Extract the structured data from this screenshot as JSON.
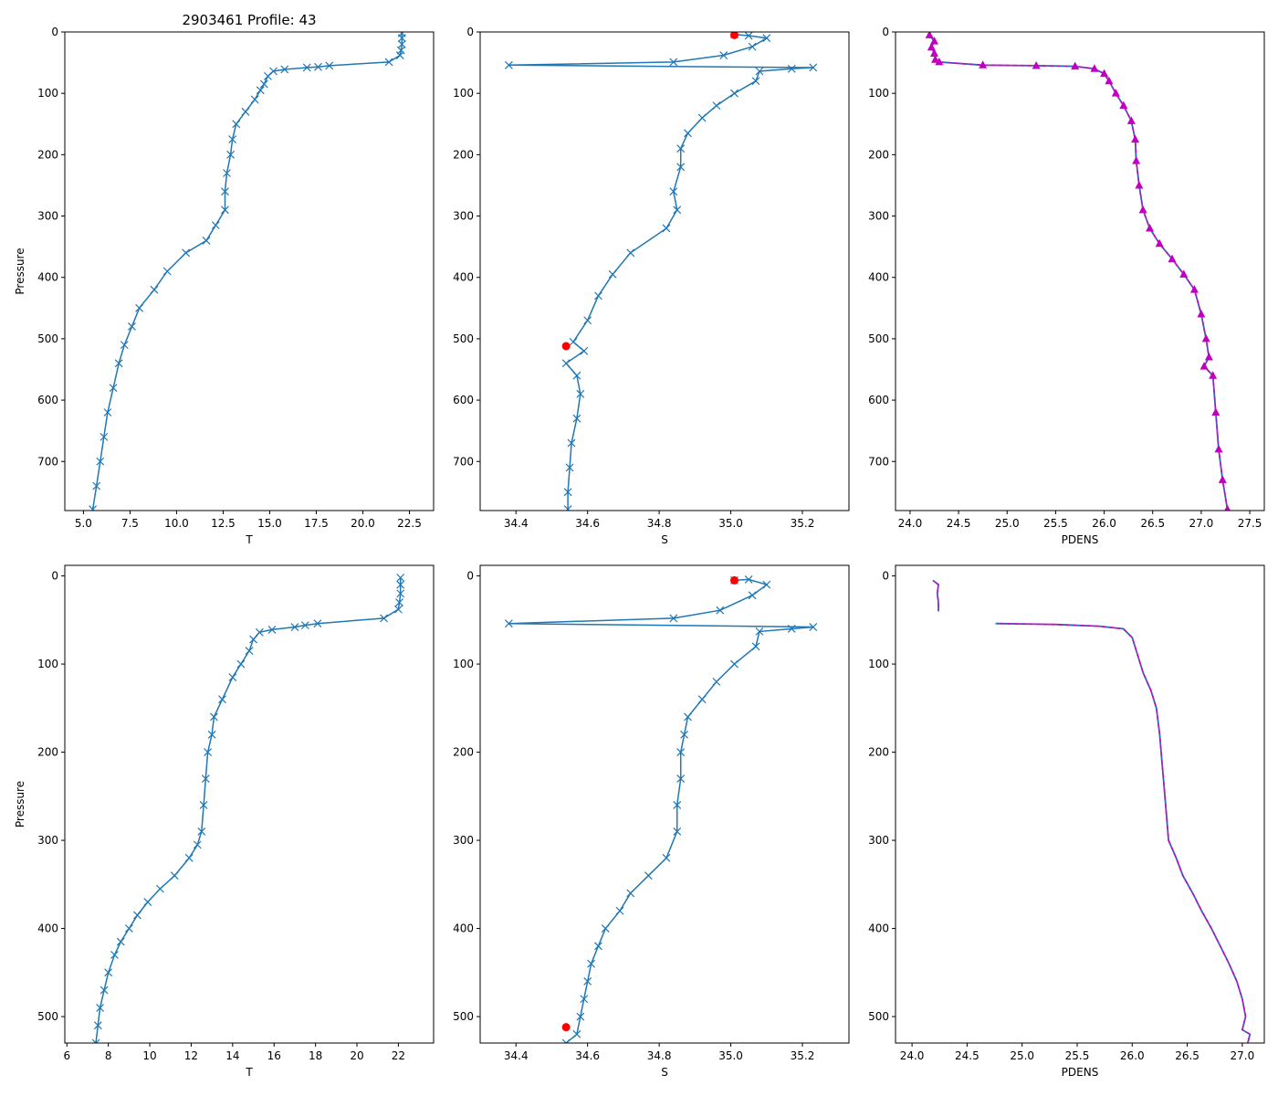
{
  "figure": {
    "title": "2903461 Profile: 43"
  },
  "chart_data": [
    {
      "type": "line",
      "row": 1,
      "col": 1,
      "xlabel": "T",
      "ylabel": "Pressure",
      "xlim": [
        4.0,
        23.8
      ],
      "ylim": [
        780,
        0
      ],
      "xticks": [
        "5.0",
        "7.5",
        "10.0",
        "12.5",
        "15.0",
        "17.5",
        "20.0",
        "22.5"
      ],
      "yticks": [
        "0",
        "100",
        "200",
        "300",
        "400",
        "500",
        "600",
        "700"
      ],
      "marker": "x",
      "series": [
        {
          "name": "T",
          "points": [
            [
              22.1,
              2
            ],
            [
              22.1,
              10
            ],
            [
              22.1,
              20
            ],
            [
              22.05,
              30
            ],
            [
              22.0,
              38
            ],
            [
              21.4,
              49
            ],
            [
              18.2,
              55
            ],
            [
              17.6,
              57
            ],
            [
              17.0,
              58
            ],
            [
              15.8,
              61
            ],
            [
              15.2,
              64
            ],
            [
              14.9,
              72
            ],
            [
              14.7,
              85
            ],
            [
              14.5,
              95
            ],
            [
              14.2,
              110
            ],
            [
              13.7,
              130
            ],
            [
              13.2,
              150
            ],
            [
              13.0,
              175
            ],
            [
              12.9,
              200
            ],
            [
              12.7,
              230
            ],
            [
              12.6,
              260
            ],
            [
              12.6,
              290
            ],
            [
              12.1,
              315
            ],
            [
              11.6,
              340
            ],
            [
              10.5,
              360
            ],
            [
              9.5,
              390
            ],
            [
              8.8,
              420
            ],
            [
              8.0,
              450
            ],
            [
              7.6,
              480
            ],
            [
              7.2,
              510
            ],
            [
              6.9,
              540
            ],
            [
              6.6,
              580
            ],
            [
              6.3,
              620
            ],
            [
              6.1,
              660
            ],
            [
              5.9,
              700
            ],
            [
              5.7,
              740
            ],
            [
              5.5,
              778
            ]
          ]
        }
      ]
    },
    {
      "type": "line",
      "row": 1,
      "col": 2,
      "xlabel": "S",
      "ylabel": "",
      "xlim": [
        34.3,
        35.33
      ],
      "ylim": [
        780,
        0
      ],
      "xticks": [
        "34.4",
        "34.6",
        "34.8",
        "35.0",
        "35.2"
      ],
      "yticks": [
        "0",
        "100",
        "200",
        "300",
        "400",
        "500",
        "600",
        "700"
      ],
      "marker": "x",
      "series": [
        {
          "name": "S",
          "points": [
            [
              35.01,
              4
            ],
            [
              35.05,
              6
            ],
            [
              35.1,
              10
            ],
            [
              35.06,
              24
            ],
            [
              34.98,
              38
            ],
            [
              34.84,
              49
            ],
            [
              34.38,
              54
            ],
            [
              35.23,
              58
            ],
            [
              35.17,
              60
            ],
            [
              35.08,
              64
            ],
            [
              35.07,
              80
            ],
            [
              35.01,
              100
            ],
            [
              34.96,
              120
            ],
            [
              34.92,
              140
            ],
            [
              34.88,
              165
            ],
            [
              34.86,
              190
            ],
            [
              34.86,
              220
            ],
            [
              34.84,
              260
            ],
            [
              34.85,
              290
            ],
            [
              34.82,
              320
            ],
            [
              34.72,
              360
            ],
            [
              34.67,
              395
            ],
            [
              34.63,
              430
            ],
            [
              34.6,
              470
            ],
            [
              34.56,
              505
            ],
            [
              34.59,
              520
            ],
            [
              34.54,
              540
            ],
            [
              34.57,
              560
            ],
            [
              34.58,
              590
            ],
            [
              34.57,
              630
            ],
            [
              34.555,
              670
            ],
            [
              34.55,
              710
            ],
            [
              34.545,
              750
            ],
            [
              34.545,
              778
            ]
          ]
        }
      ],
      "highlights": [
        [
          35.01,
          5
        ],
        [
          34.54,
          512
        ]
      ]
    },
    {
      "type": "line",
      "row": 1,
      "col": 3,
      "xlabel": "PDENS",
      "ylabel": "",
      "xlim": [
        23.85,
        27.65
      ],
      "ylim": [
        780,
        0
      ],
      "xticks": [
        "24.0",
        "24.5",
        "25.0",
        "25.5",
        "26.0",
        "26.5",
        "27.0",
        "27.5"
      ],
      "yticks": [
        "0",
        "100",
        "200",
        "300",
        "400",
        "500",
        "600",
        "700"
      ],
      "marker": "triangle",
      "series": [
        {
          "name": "PDENS",
          "points": [
            [
              24.2,
              5
            ],
            [
              24.25,
              15
            ],
            [
              24.22,
              25
            ],
            [
              24.25,
              35
            ],
            [
              24.26,
              45
            ],
            [
              24.3,
              49
            ],
            [
              24.75,
              54
            ],
            [
              25.3,
              55
            ],
            [
              25.7,
              56
            ],
            [
              25.9,
              60
            ],
            [
              26.0,
              68
            ],
            [
              26.05,
              80
            ],
            [
              26.12,
              100
            ],
            [
              26.2,
              120
            ],
            [
              26.28,
              145
            ],
            [
              26.32,
              175
            ],
            [
              26.33,
              210
            ],
            [
              26.36,
              250
            ],
            [
              26.4,
              290
            ],
            [
              26.47,
              320
            ],
            [
              26.57,
              345
            ],
            [
              26.7,
              370
            ],
            [
              26.82,
              395
            ],
            [
              26.93,
              420
            ],
            [
              27.0,
              460
            ],
            [
              27.05,
              500
            ],
            [
              27.08,
              530
            ],
            [
              27.03,
              545
            ],
            [
              27.12,
              560
            ],
            [
              27.15,
              620
            ],
            [
              27.18,
              680
            ],
            [
              27.22,
              730
            ],
            [
              27.27,
              778
            ]
          ]
        }
      ]
    },
    {
      "type": "line",
      "row": 2,
      "col": 1,
      "xlabel": "T",
      "ylabel": "Pressure",
      "xlim": [
        5.9,
        23.7
      ],
      "ylim": [
        530,
        -12
      ],
      "xticks": [
        "6",
        "8",
        "10",
        "12",
        "14",
        "16",
        "18",
        "20",
        "22"
      ],
      "yticks": [
        "0",
        "100",
        "200",
        "300",
        "400",
        "500"
      ],
      "marker": "x",
      "series": [
        {
          "name": "T",
          "points": [
            [
              22.1,
              2
            ],
            [
              22.1,
              10
            ],
            [
              22.1,
              20
            ],
            [
              22.05,
              30
            ],
            [
              22.0,
              38
            ],
            [
              21.3,
              48
            ],
            [
              18.1,
              54
            ],
            [
              17.5,
              56
            ],
            [
              17.0,
              58
            ],
            [
              15.9,
              61
            ],
            [
              15.3,
              64
            ],
            [
              15.0,
              72
            ],
            [
              14.8,
              85
            ],
            [
              14.4,
              100
            ],
            [
              14.0,
              115
            ],
            [
              13.5,
              140
            ],
            [
              13.1,
              160
            ],
            [
              13.0,
              180
            ],
            [
              12.8,
              200
            ],
            [
              12.7,
              230
            ],
            [
              12.6,
              260
            ],
            [
              12.5,
              290
            ],
            [
              12.3,
              305
            ],
            [
              11.9,
              320
            ],
            [
              11.2,
              340
            ],
            [
              10.5,
              355
            ],
            [
              9.9,
              370
            ],
            [
              9.4,
              385
            ],
            [
              9.0,
              400
            ],
            [
              8.6,
              415
            ],
            [
              8.3,
              430
            ],
            [
              8.0,
              450
            ],
            [
              7.8,
              470
            ],
            [
              7.6,
              490
            ],
            [
              7.5,
              510
            ],
            [
              7.4,
              530
            ]
          ]
        }
      ]
    },
    {
      "type": "line",
      "row": 2,
      "col": 2,
      "xlabel": "S",
      "ylabel": "",
      "xlim": [
        34.3,
        35.33
      ],
      "ylim": [
        530,
        -12
      ],
      "xticks": [
        "34.4",
        "34.6",
        "34.8",
        "35.0",
        "35.2"
      ],
      "yticks": [
        "0",
        "100",
        "200",
        "300",
        "400",
        "500"
      ],
      "marker": "x",
      "series": [
        {
          "name": "S",
          "points": [
            [
              35.01,
              5
            ],
            [
              35.05,
              4
            ],
            [
              35.1,
              10
            ],
            [
              35.06,
              22
            ],
            [
              34.97,
              39
            ],
            [
              34.84,
              48
            ],
            [
              34.38,
              54
            ],
            [
              35.23,
              58
            ],
            [
              35.17,
              60
            ],
            [
              35.08,
              63
            ],
            [
              35.07,
              80
            ],
            [
              35.01,
              100
            ],
            [
              34.96,
              120
            ],
            [
              34.92,
              140
            ],
            [
              34.88,
              160
            ],
            [
              34.87,
              180
            ],
            [
              34.86,
              200
            ],
            [
              34.86,
              230
            ],
            [
              34.85,
              260
            ],
            [
              34.85,
              290
            ],
            [
              34.82,
              320
            ],
            [
              34.77,
              340
            ],
            [
              34.72,
              360
            ],
            [
              34.69,
              380
            ],
            [
              34.65,
              400
            ],
            [
              34.63,
              420
            ],
            [
              34.61,
              440
            ],
            [
              34.6,
              460
            ],
            [
              34.59,
              480
            ],
            [
              34.58,
              500
            ],
            [
              34.57,
              520
            ],
            [
              34.54,
              530
            ]
          ]
        }
      ],
      "highlights": [
        [
          35.01,
          5
        ],
        [
          34.54,
          512
        ]
      ]
    },
    {
      "type": "line",
      "row": 2,
      "col": 3,
      "xlabel": "PDENS",
      "ylabel": "",
      "xlim": [
        23.85,
        27.2
      ],
      "ylim": [
        530,
        -12
      ],
      "xticks": [
        "24.0",
        "24.5",
        "25.0",
        "25.5",
        "26.0",
        "26.5",
        "27.0"
      ],
      "yticks": [
        "0",
        "100",
        "200",
        "300",
        "400",
        "500"
      ],
      "marker": "none",
      "series": [
        {
          "name": "PDENS-upper",
          "points": [
            [
              24.19,
              5
            ],
            [
              24.24,
              10
            ],
            [
              24.23,
              20
            ],
            [
              24.24,
              30
            ],
            [
              24.24,
              40
            ]
          ]
        },
        {
          "name": "PDENS",
          "points": [
            [
              24.76,
              54
            ],
            [
              25.3,
              55
            ],
            [
              25.7,
              57
            ],
            [
              25.92,
              60
            ],
            [
              26.0,
              70
            ],
            [
              26.05,
              90
            ],
            [
              26.1,
              110
            ],
            [
              26.17,
              130
            ],
            [
              26.22,
              150
            ],
            [
              26.25,
              180
            ],
            [
              26.27,
              210
            ],
            [
              26.29,
              240
            ],
            [
              26.31,
              270
            ],
            [
              26.33,
              300
            ],
            [
              26.4,
              320
            ],
            [
              26.46,
              340
            ],
            [
              26.55,
              360
            ],
            [
              26.63,
              380
            ],
            [
              26.72,
              400
            ],
            [
              26.8,
              420
            ],
            [
              26.88,
              440
            ],
            [
              26.95,
              460
            ],
            [
              27.0,
              480
            ],
            [
              27.03,
              500
            ],
            [
              27.0,
              515
            ],
            [
              27.07,
              520
            ],
            [
              27.05,
              530
            ]
          ]
        }
      ]
    }
  ]
}
